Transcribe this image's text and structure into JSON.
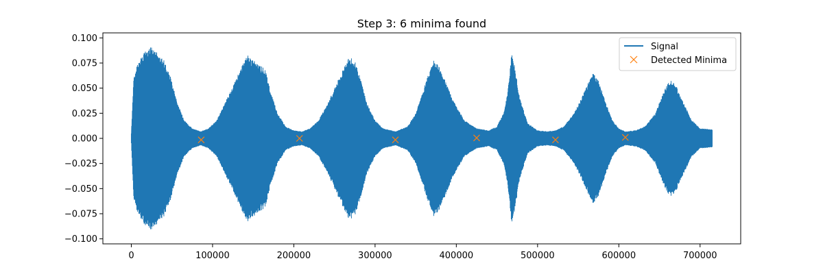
{
  "chart_data": {
    "type": "line",
    "title": "Step 3: 6 minima found",
    "xlabel": "",
    "ylabel": "",
    "xlim": [
      -35000,
      750000
    ],
    "ylim": [
      -0.105,
      0.105
    ],
    "x_ticks": [
      0,
      100000,
      200000,
      300000,
      400000,
      500000,
      600000,
      700000
    ],
    "x_tick_labels": [
      "0",
      "100000",
      "200000",
      "300000",
      "400000",
      "500000",
      "600000",
      "700000"
    ],
    "y_ticks": [
      0.1,
      0.075,
      0.05,
      0.025,
      0.0,
      -0.025,
      -0.05,
      -0.075,
      -0.1
    ],
    "y_tick_labels": [
      "0.100",
      "0.075",
      "0.050",
      "0.025",
      "0.000",
      "−0.025",
      "−0.050",
      "−0.075",
      "−0.100"
    ],
    "grid": false,
    "legend_position": "top-right",
    "series": [
      {
        "name": "Signal",
        "kind": "oscillating-envelope",
        "color": "#1f77b4",
        "envelope_x": [
          0,
          3000,
          8000,
          15000,
          25000,
          32000,
          40000,
          48000,
          55000,
          65000,
          75000,
          85000,
          95000,
          105000,
          115000,
          125000,
          135000,
          143000,
          150000,
          158000,
          165000,
          172000,
          180000,
          190000,
          200000,
          210000,
          220000,
          230000,
          240000,
          250000,
          260000,
          268000,
          275000,
          282000,
          290000,
          300000,
          310000,
          325000,
          340000,
          350000,
          358000,
          365000,
          372000,
          378000,
          385000,
          395000,
          410000,
          425000,
          440000,
          450000,
          458000,
          463000,
          468000,
          472000,
          478000,
          488000,
          500000,
          512000,
          522000,
          532000,
          545000,
          555000,
          562000,
          568000,
          575000,
          582000,
          592000,
          600000,
          608000,
          620000,
          632000,
          645000,
          652000,
          660000,
          665000,
          672000,
          680000,
          690000,
          700000,
          715000
        ],
        "envelope_y": [
          0.005,
          0.06,
          0.075,
          0.085,
          0.092,
          0.085,
          0.078,
          0.062,
          0.04,
          0.018,
          0.01,
          0.007,
          0.01,
          0.018,
          0.035,
          0.052,
          0.07,
          0.083,
          0.078,
          0.074,
          0.068,
          0.045,
          0.025,
          0.012,
          0.008,
          0.007,
          0.01,
          0.018,
          0.032,
          0.05,
          0.068,
          0.082,
          0.078,
          0.06,
          0.035,
          0.018,
          0.01,
          0.007,
          0.012,
          0.025,
          0.045,
          0.062,
          0.078,
          0.073,
          0.06,
          0.04,
          0.018,
          0.01,
          0.008,
          0.012,
          0.025,
          0.045,
          0.085,
          0.072,
          0.04,
          0.015,
          0.008,
          0.007,
          0.008,
          0.012,
          0.025,
          0.042,
          0.055,
          0.065,
          0.058,
          0.04,
          0.018,
          0.01,
          0.007,
          0.008,
          0.012,
          0.025,
          0.04,
          0.055,
          0.058,
          0.05,
          0.035,
          0.018,
          0.01,
          0.009
        ]
      },
      {
        "name": "Detected Minima",
        "kind": "markers",
        "marker": "x",
        "color": "#ff7f0e",
        "points": [
          {
            "x": 86000,
            "y": -0.0015
          },
          {
            "x": 207000,
            "y": 0.0
          },
          {
            "x": 325000,
            "y": -0.0015
          },
          {
            "x": 425000,
            "y": 0.0005
          },
          {
            "x": 522000,
            "y": -0.0015
          },
          {
            "x": 608000,
            "y": 0.001
          }
        ]
      }
    ]
  }
}
